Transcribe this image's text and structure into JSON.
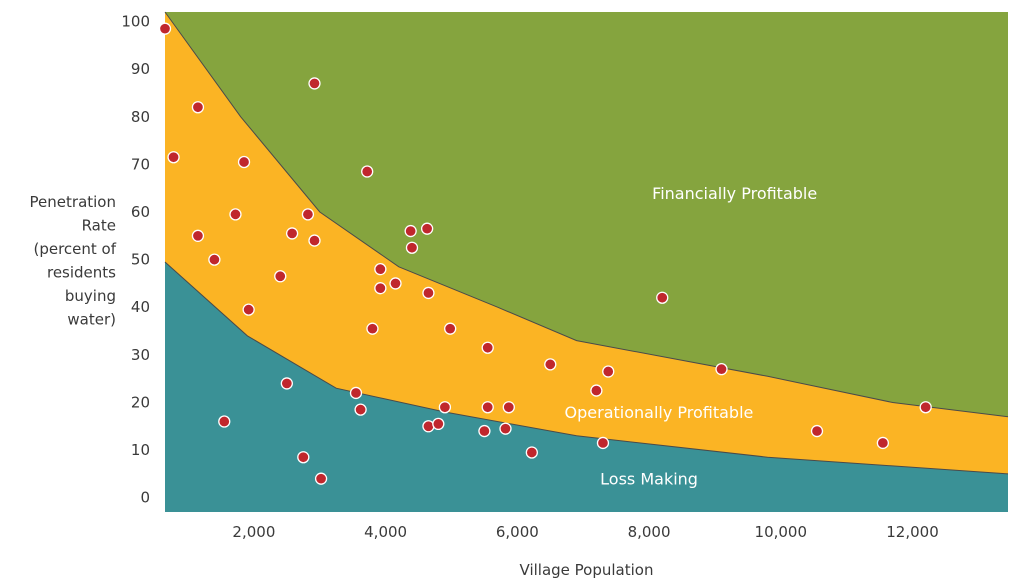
{
  "chart_data": {
    "type": "scatter",
    "title": "",
    "xlabel": "Village Population",
    "ylabel_lines": [
      "Penetration",
      "Rate",
      "(percent of",
      "residents",
      "buying",
      "water)"
    ],
    "xlim": [
      650,
      13450
    ],
    "ylim": [
      -3,
      102
    ],
    "x_ticks": [
      2000,
      4000,
      6000,
      8000,
      10000,
      12000
    ],
    "x_tick_labels": [
      "2,000",
      "4,000",
      "6,000",
      "8,000",
      "10,000",
      "12,000"
    ],
    "y_ticks": [
      0,
      10,
      20,
      30,
      40,
      50,
      60,
      70,
      80,
      90,
      100
    ],
    "y_tick_labels": [
      "0",
      "10",
      "20",
      "30",
      "40",
      "50",
      "60",
      "70",
      "80",
      "90",
      "100"
    ],
    "regions": [
      {
        "name": "Loss Making",
        "color": "#3a9196",
        "lower": [
          [
            650,
            -3
          ],
          [
            13450,
            -3
          ]
        ],
        "upper": [
          [
            650,
            49.5
          ],
          [
            1900,
            34
          ],
          [
            3250,
            23
          ],
          [
            4900,
            18
          ],
          [
            6900,
            13
          ],
          [
            9800,
            8.5
          ],
          [
            13450,
            5
          ]
        ]
      },
      {
        "name": "Operationally Profitable",
        "color": "#fbb424",
        "upper": [
          [
            650,
            102
          ],
          [
            1800,
            80
          ],
          [
            3000,
            60
          ],
          [
            4200,
            48.5
          ],
          [
            5700,
            40
          ],
          [
            6900,
            33
          ],
          [
            9800,
            25.5
          ],
          [
            11700,
            20
          ],
          [
            13450,
            17
          ]
        ]
      },
      {
        "name": "Financially Profitable",
        "color": "#85a43e"
      }
    ],
    "region_labels": [
      {
        "text": "Financially Profitable",
        "x": 9300,
        "y": 64
      },
      {
        "text": "Operationally Profitable",
        "x": 8150,
        "y": 18
      },
      {
        "text": "Loss Making",
        "x": 8000,
        "y": 4
      }
    ],
    "points": [
      [
        650,
        98.5
      ],
      [
        780,
        71.5
      ],
      [
        1150,
        82
      ],
      [
        1150,
        55
      ],
      [
        1400,
        50
      ],
      [
        1550,
        16
      ],
      [
        1720,
        59.5
      ],
      [
        1850,
        70.5
      ],
      [
        1920,
        39.5
      ],
      [
        2400,
        46.5
      ],
      [
        2500,
        24
      ],
      [
        2580,
        55.5
      ],
      [
        2750,
        8.5
      ],
      [
        2820,
        59.5
      ],
      [
        2920,
        54
      ],
      [
        2920,
        87
      ],
      [
        3020,
        4
      ],
      [
        3550,
        22
      ],
      [
        3620,
        18.5
      ],
      [
        3720,
        68.5
      ],
      [
        3800,
        35.5
      ],
      [
        3920,
        48
      ],
      [
        3920,
        44
      ],
      [
        4150,
        45
      ],
      [
        4380,
        56
      ],
      [
        4400,
        52.5
      ],
      [
        4630,
        56.5
      ],
      [
        4650,
        43
      ],
      [
        4650,
        15
      ],
      [
        4800,
        15.5
      ],
      [
        4900,
        19
      ],
      [
        4980,
        35.5
      ],
      [
        5500,
        14
      ],
      [
        5550,
        19
      ],
      [
        5550,
        31.5
      ],
      [
        5820,
        14.5
      ],
      [
        5870,
        19
      ],
      [
        6220,
        9.5
      ],
      [
        6500,
        28
      ],
      [
        7200,
        22.5
      ],
      [
        7300,
        11.5
      ],
      [
        7380,
        26.5
      ],
      [
        8200,
        42
      ],
      [
        9100,
        27
      ],
      [
        10550,
        14
      ],
      [
        11550,
        11.5
      ],
      [
        12200,
        19
      ]
    ],
    "point_color": "#c0272d"
  }
}
